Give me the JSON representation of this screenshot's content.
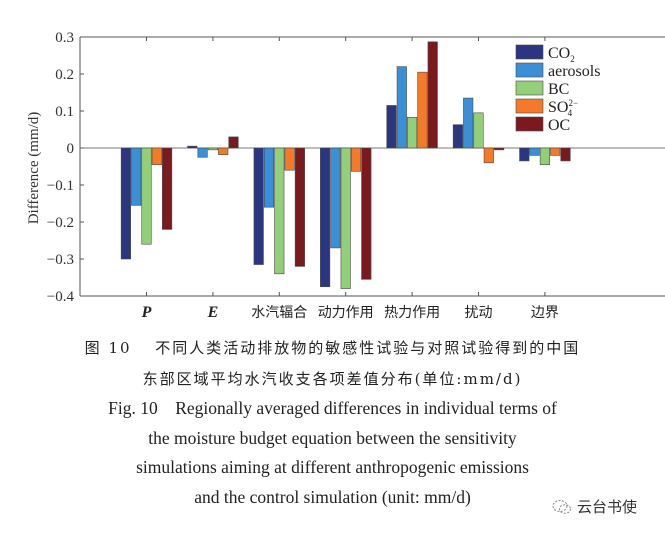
{
  "chart_data": {
    "type": "bar",
    "title": "",
    "xlabel": "",
    "ylabel": "Difference (mm/d)",
    "ylim": [
      -0.4,
      0.3
    ],
    "yticks": [
      0.3,
      0.2,
      0.1,
      0,
      -0.1,
      -0.2,
      -0.3,
      -0.4
    ],
    "ytick_labels": [
      "0.3",
      "0.2",
      "0.1",
      "0",
      "−0.1",
      "−0.2",
      "−0.3",
      "−0.4"
    ],
    "categories": [
      "P",
      "E",
      "水汽辐合",
      "动力作用",
      "热力作用",
      "扰动",
      "边界"
    ],
    "category_italic": [
      true,
      true,
      false,
      false,
      false,
      false,
      false
    ],
    "legend_position": "top-right",
    "grid": false,
    "series": [
      {
        "name": "CO2",
        "label_main": "CO",
        "label_sub": "2",
        "label_sup": "",
        "color": "#2b3580",
        "values": [
          -0.3,
          0.005,
          -0.315,
          -0.375,
          0.115,
          0.063,
          -0.035
        ]
      },
      {
        "name": "aerosols",
        "label_main": "aerosols",
        "label_sub": "",
        "label_sup": "",
        "color": "#3a8fd6",
        "values": [
          -0.155,
          -0.025,
          -0.16,
          -0.27,
          0.22,
          0.135,
          -0.02
        ]
      },
      {
        "name": "BC",
        "label_main": "BC",
        "label_sub": "",
        "label_sup": "",
        "color": "#93cf78",
        "values": [
          -0.26,
          -0.005,
          -0.34,
          -0.38,
          0.083,
          0.095,
          -0.045
        ]
      },
      {
        "name": "SO4 2-",
        "label_main": "SO",
        "label_sub": "4",
        "label_sup": "2−",
        "color": "#f47a2a",
        "values": [
          -0.045,
          -0.018,
          -0.06,
          -0.063,
          0.205,
          -0.04,
          -0.02
        ]
      },
      {
        "name": "OC",
        "label_main": "OC",
        "label_sub": "",
        "label_sup": "",
        "color": "#7a1a1f",
        "values": [
          -0.22,
          0.03,
          -0.32,
          -0.355,
          0.287,
          -0.005,
          -0.035
        ]
      }
    ]
  },
  "caption": {
    "zh_line1": "图 10　 不同人类活动排放物的敏感性试验与对照试验得到的中国",
    "zh_line2": "东部区域平均水汽收支各项差值分布(单位:mm/d)",
    "en_line1": "Fig. 10 Regionally averaged differences in individual terms of",
    "en_line2": "the moisture budget equation between the sensitivity",
    "en_line3": "simulations aiming at different anthropogenic emissions",
    "en_line4": "and the control simulation (unit: mm/d)"
  },
  "watermark": {
    "text": "云台书使",
    "icon": "wechat-icon"
  }
}
